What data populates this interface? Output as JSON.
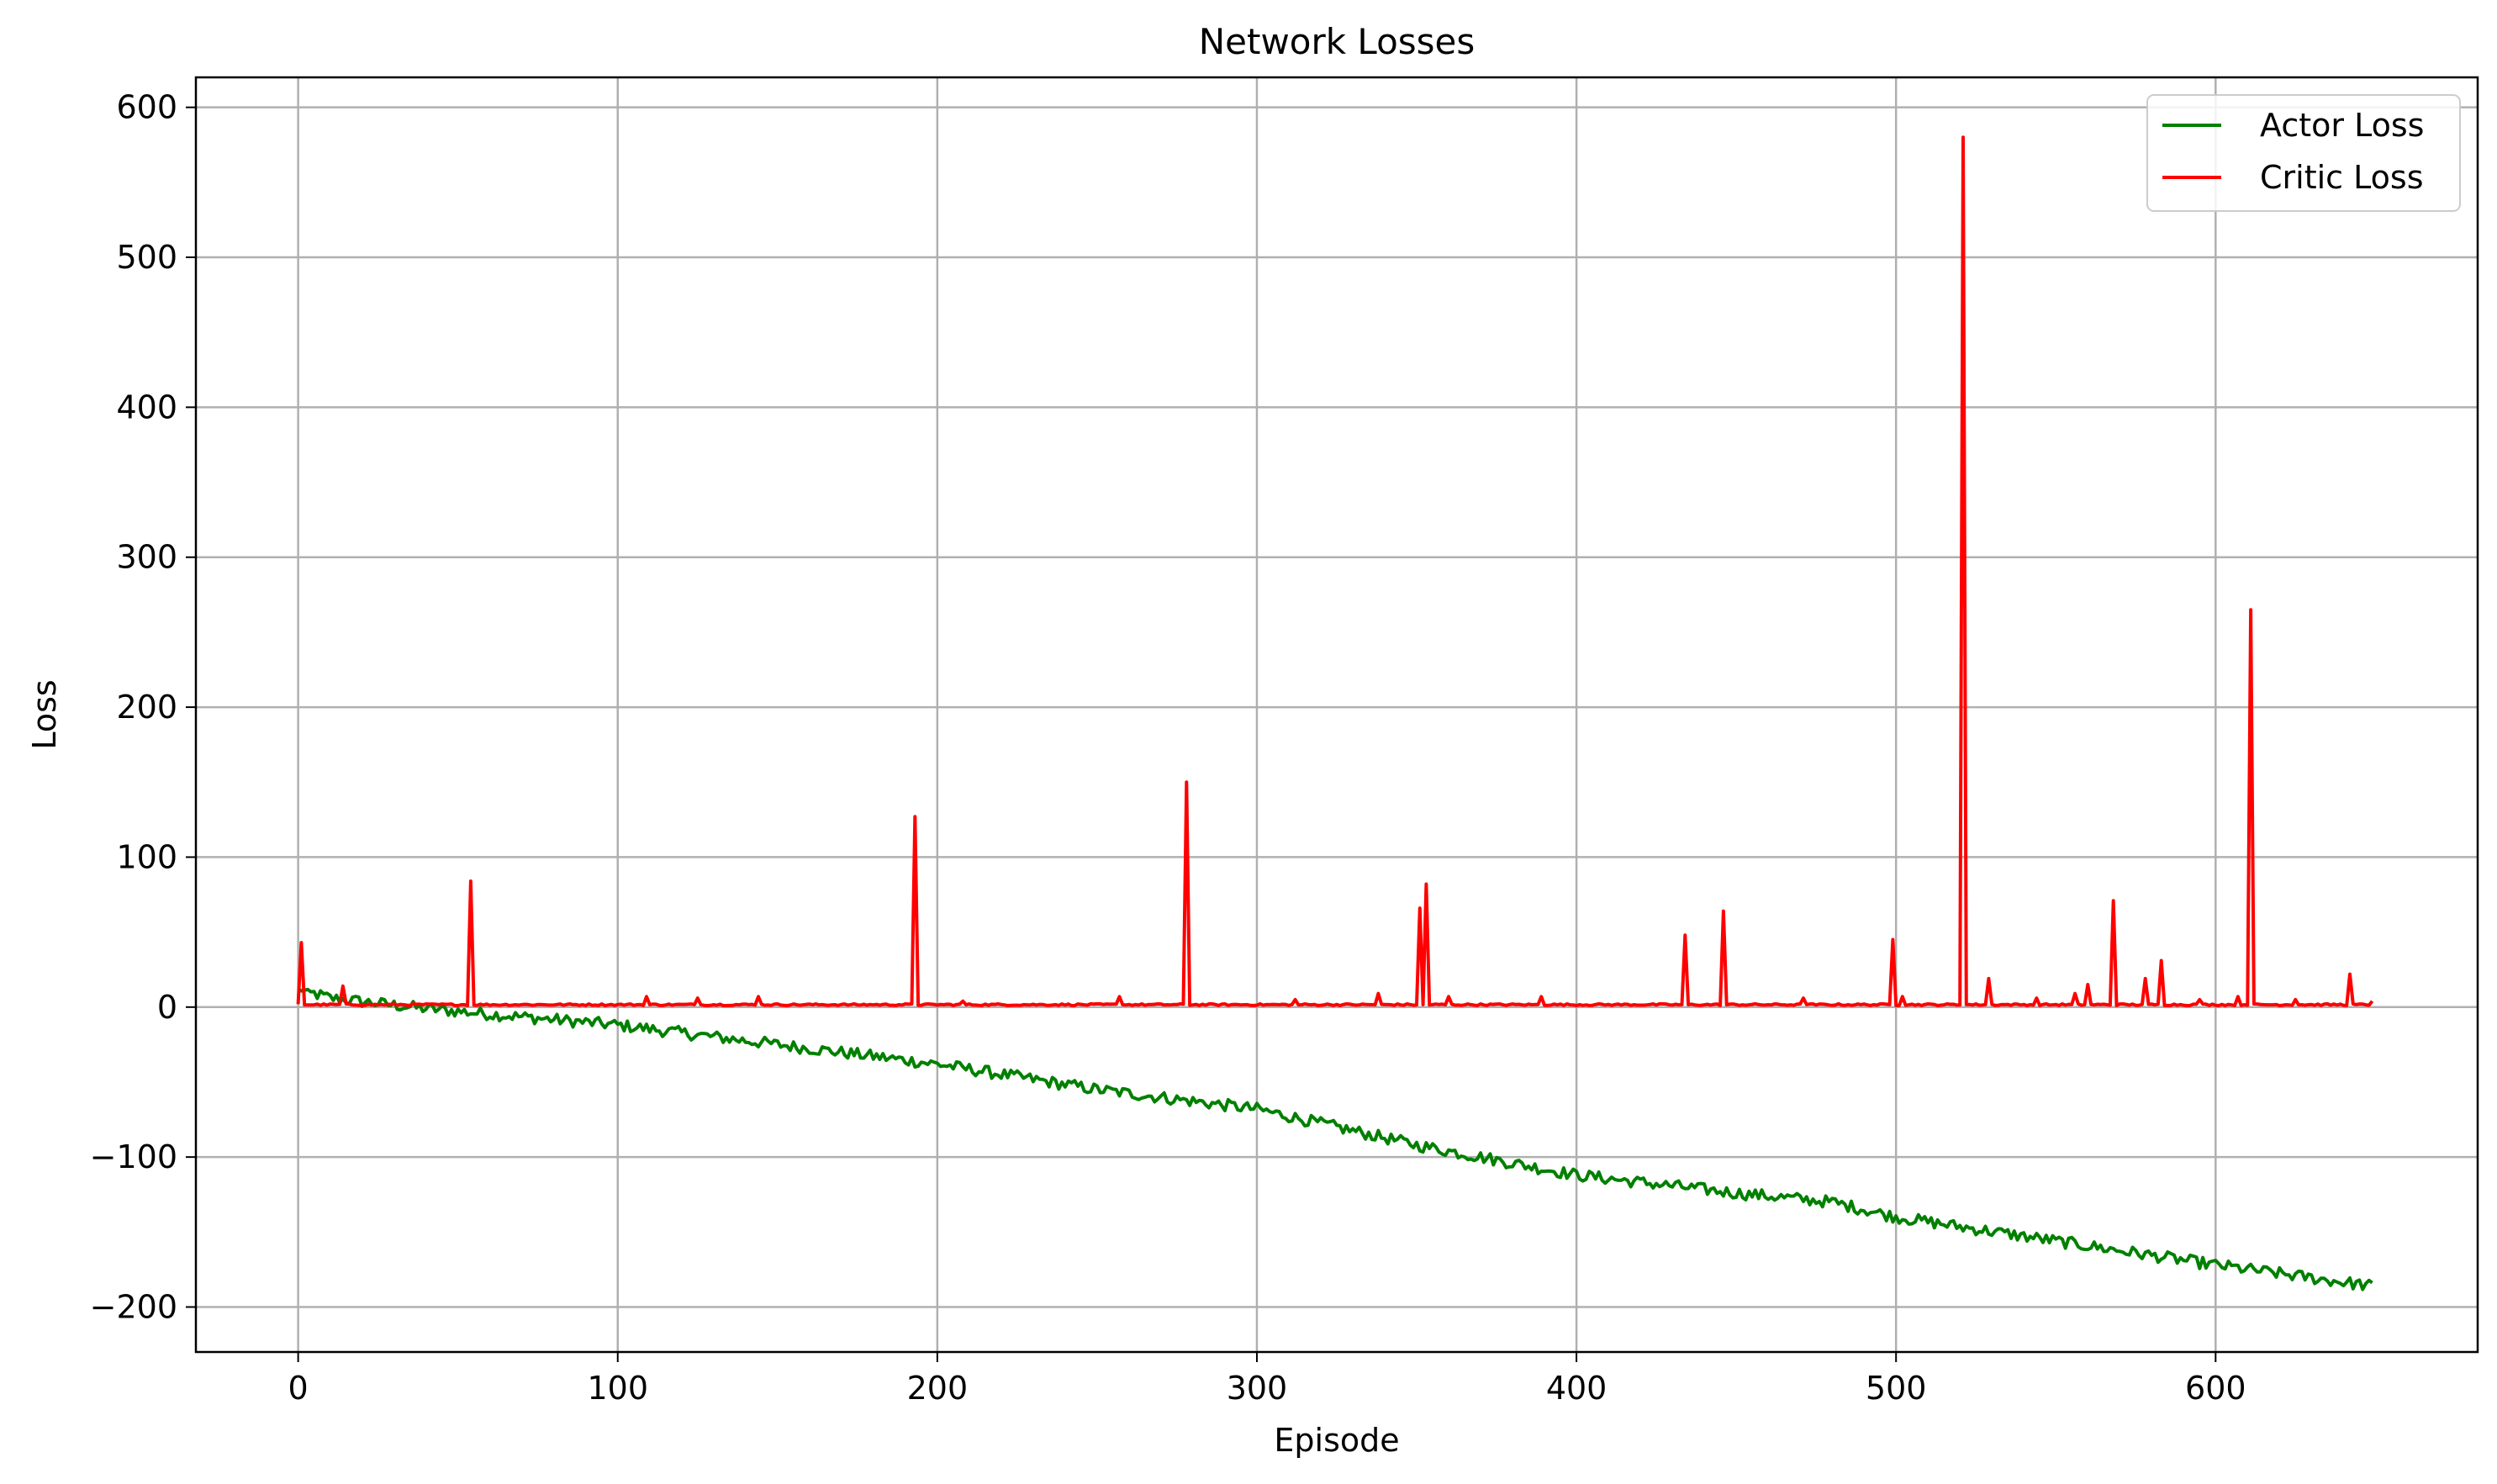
{
  "chart_data": {
    "type": "line",
    "title": "Network Losses",
    "xlabel": "Episode",
    "ylabel": "Loss",
    "xlim": [
      -32,
      682
    ],
    "ylim": [
      -230,
      620
    ],
    "xticks": [
      0,
      100,
      200,
      300,
      400,
      500,
      600
    ],
    "yticks": [
      -200,
      -100,
      0,
      100,
      200,
      300,
      400,
      500,
      600
    ],
    "xtick_labels": [
      "0",
      "100",
      "200",
      "300",
      "400",
      "500",
      "600"
    ],
    "ytick_labels": [
      "−200",
      "−100",
      "0",
      "100",
      "200",
      "300",
      "400",
      "500",
      "600"
    ],
    "grid": true,
    "legend_position": "top-right",
    "series": [
      {
        "name": "Actor Loss",
        "color": "#008000",
        "trend": [
          [
            0,
            12
          ],
          [
            10,
            6
          ],
          [
            40,
            -1
          ],
          [
            100,
            -12
          ],
          [
            150,
            -25
          ],
          [
            200,
            -38
          ],
          [
            250,
            -55
          ],
          [
            300,
            -68
          ],
          [
            350,
            -92
          ],
          [
            400,
            -112
          ],
          [
            450,
            -124
          ],
          [
            480,
            -130
          ],
          [
            500,
            -140
          ],
          [
            550,
            -156
          ],
          [
            600,
            -172
          ],
          [
            649,
            -186
          ]
        ],
        "noise_amplitude": 4
      },
      {
        "name": "Critic Loss",
        "color": "#ff0000",
        "baseline": 1,
        "spikes": [
          [
            1,
            43
          ],
          [
            14,
            14
          ],
          [
            54,
            84
          ],
          [
            109,
            7
          ],
          [
            125,
            6
          ],
          [
            144,
            7
          ],
          [
            193,
            127
          ],
          [
            208,
            4
          ],
          [
            257,
            7
          ],
          [
            278,
            150
          ],
          [
            312,
            5
          ],
          [
            338,
            9
          ],
          [
            351,
            66
          ],
          [
            353,
            82
          ],
          [
            360,
            7
          ],
          [
            389,
            7
          ],
          [
            434,
            48
          ],
          [
            446,
            64
          ],
          [
            471,
            6
          ],
          [
            499,
            45
          ],
          [
            502,
            7
          ],
          [
            521,
            580
          ],
          [
            529,
            19
          ],
          [
            544,
            6
          ],
          [
            556,
            9
          ],
          [
            560,
            15
          ],
          [
            568,
            71
          ],
          [
            578,
            19
          ],
          [
            583,
            31
          ],
          [
            595,
            5
          ],
          [
            607,
            7
          ],
          [
            611,
            265
          ],
          [
            625,
            5
          ],
          [
            642,
            22
          ],
          [
            649,
            4
          ]
        ]
      }
    ]
  }
}
